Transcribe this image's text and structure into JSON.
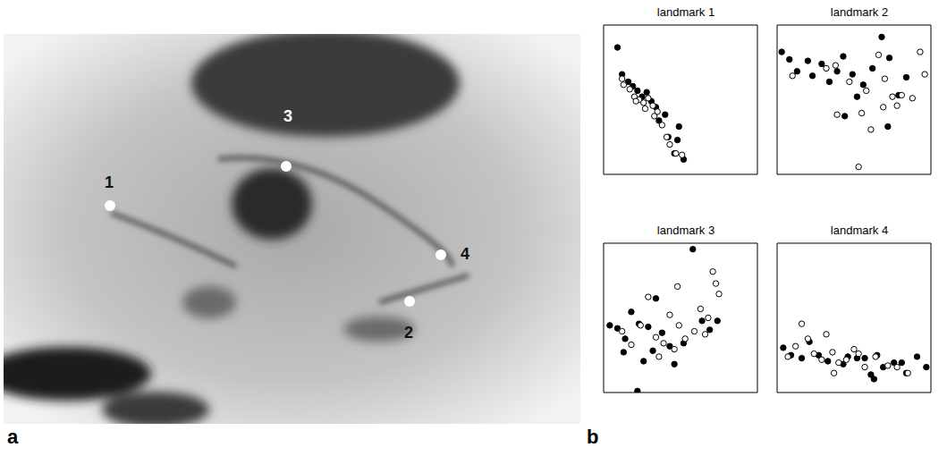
{
  "panel_labels": [
    "a",
    "b"
  ],
  "image": {
    "landmark_labels": [
      "1",
      "2",
      "3",
      "4"
    ]
  },
  "chart_data": [
    {
      "type": "scatter",
      "title": "landmark 1",
      "xlim": [
        0,
        10
      ],
      "ylim": [
        0,
        10
      ],
      "xticks": [
        0,
        2,
        4,
        6,
        8,
        10
      ],
      "yticks": [
        0,
        2,
        4,
        6,
        8,
        10
      ],
      "tick_labels": false,
      "series": [
        {
          "color": "#000000",
          "marker": "filled",
          "x": [
            0.9,
            1.2,
            1.6,
            1.9,
            2.2,
            2.5,
            2.8,
            3.1,
            3.4,
            3.6,
            4.0,
            4.2,
            4.6,
            4.8,
            4.9,
            5.2
          ],
          "y": [
            8.5,
            6.7,
            6.2,
            5.9,
            5.6,
            5.2,
            5.5,
            4.9,
            4.5,
            3.6,
            4.0,
            2.5,
            1.4,
            2.3,
            3.2,
            1.0
          ]
        },
        {
          "color": "#000000",
          "marker": "open",
          "x": [
            1.2,
            1.3,
            1.7,
            2.0,
            2.3,
            2.6,
            2.9,
            3.2,
            3.3,
            3.5,
            3.8,
            4.1,
            4.3,
            4.7,
            5.1,
            2.1,
            2.7
          ],
          "y": [
            6.4,
            6.0,
            5.7,
            5.2,
            5.0,
            4.8,
            5.1,
            4.6,
            3.9,
            4.2,
            3.3,
            2.5,
            2.0,
            1.4,
            1.3,
            4.9,
            4.4
          ]
        }
      ]
    },
    {
      "type": "scatter",
      "title": "landmark 2",
      "xlim": [
        0,
        10
      ],
      "ylim": [
        0,
        10
      ],
      "xticks": [
        0,
        2,
        4,
        6,
        8,
        10
      ],
      "yticks": [
        0,
        2,
        4,
        6,
        8,
        10
      ],
      "tick_labels": false,
      "series": [
        {
          "color": "#000000",
          "marker": "filled",
          "x": [
            0.3,
            0.8,
            1.3,
            2.0,
            2.3,
            2.9,
            3.4,
            3.9,
            4.3,
            4.9,
            5.6,
            6.2,
            6.8,
            7.3,
            7.9,
            8.4,
            5.2,
            4.4,
            7.2
          ],
          "y": [
            8.2,
            7.7,
            6.9,
            7.6,
            6.6,
            7.4,
            6.2,
            6.9,
            7.9,
            6.7,
            6.0,
            7.1,
            9.2,
            7.8,
            5.3,
            6.5,
            5.2,
            3.9,
            3.2
          ]
        },
        {
          "color": "#000000",
          "marker": "open",
          "x": [
            1.0,
            3.2,
            3.8,
            4.7,
            5.5,
            5.8,
            6.6,
            7.0,
            7.5,
            7.8,
            8.1,
            8.8,
            9.6,
            9.3,
            6.9,
            6.1,
            5.3,
            3.9
          ],
          "y": [
            6.6,
            7.1,
            7.3,
            6.2,
            4.1,
            5.6,
            8.0,
            6.4,
            5.2,
            4.6,
            5.3,
            5.1,
            6.7,
            8.2,
            4.5,
            3.0,
            0.5,
            4.0
          ]
        }
      ]
    },
    {
      "type": "scatter",
      "title": "landmark 3",
      "xlim": [
        0,
        10
      ],
      "ylim": [
        0,
        10
      ],
      "xticks": [
        0,
        2,
        4,
        6,
        8,
        10
      ],
      "yticks": [
        0,
        2,
        4,
        6,
        8,
        10
      ],
      "tick_labels": false,
      "series": [
        {
          "color": "#000000",
          "marker": "filled",
          "x": [
            0.4,
            0.9,
            1.4,
            1.8,
            2.3,
            2.6,
            1.3,
            2.9,
            3.4,
            3.8,
            4.3,
            4.6,
            5.2,
            5.8,
            6.4,
            6.9,
            7.4,
            2.2,
            3.2
          ],
          "y": [
            4.5,
            4.3,
            3.6,
            5.4,
            4.6,
            2.1,
            2.7,
            4.4,
            6.3,
            4.0,
            3.1,
            1.9,
            3.3,
            9.6,
            4.8,
            4.2,
            4.8,
            0.1,
            2.8
          ]
        },
        {
          "color": "#000000",
          "marker": "open",
          "x": [
            1.2,
            1.8,
            2.4,
            2.9,
            3.4,
            3.9,
            4.3,
            4.9,
            5.3,
            4.6,
            5.9,
            6.3,
            6.8,
            7.1,
            7.3,
            7.5,
            6.6,
            4.8,
            3.6
          ],
          "y": [
            4.1,
            3.2,
            4.5,
            6.4,
            3.7,
            3.3,
            5.2,
            4.5,
            3.6,
            2.9,
            4.1,
            5.6,
            5.0,
            8.1,
            7.3,
            6.6,
            3.9,
            7.1,
            2.4
          ]
        }
      ]
    },
    {
      "type": "scatter",
      "title": "landmark 4",
      "xlim": [
        0,
        10
      ],
      "ylim": [
        0,
        10
      ],
      "xticks": [
        0,
        2,
        4,
        6,
        8,
        10
      ],
      "yticks": [
        0,
        2,
        4,
        6,
        8,
        10
      ],
      "tick_labels": false,
      "series": [
        {
          "color": "#000000",
          "marker": "filled",
          "x": [
            0.4,
            0.9,
            1.6,
            2.1,
            2.7,
            3.3,
            4.3,
            4.6,
            5.2,
            5.7,
            6.1,
            6.5,
            6.9,
            7.6,
            8.1,
            8.4,
            9.1,
            9.7,
            6.3
          ],
          "y": [
            3.0,
            2.5,
            2.3,
            3.4,
            2.5,
            2.1,
            1.9,
            2.4,
            2.3,
            2.3,
            1.2,
            2.5,
            1.7,
            2.0,
            2.0,
            1.3,
            2.4,
            1.7,
            0.9
          ]
        },
        {
          "color": "#000000",
          "marker": "open",
          "x": [
            0.7,
            1.2,
            1.6,
            2.0,
            2.4,
            2.9,
            3.2,
            3.6,
            4.0,
            4.5,
            5.0,
            5.3,
            5.7,
            6.4,
            7.2,
            7.8,
            8.5,
            3.7
          ],
          "y": [
            2.4,
            3.1,
            4.6,
            3.6,
            2.6,
            2.2,
            3.9,
            2.7,
            2.0,
            2.2,
            2.9,
            2.6,
            1.7,
            2.4,
            1.8,
            1.7,
            1.3,
            1.3
          ]
        }
      ]
    }
  ]
}
